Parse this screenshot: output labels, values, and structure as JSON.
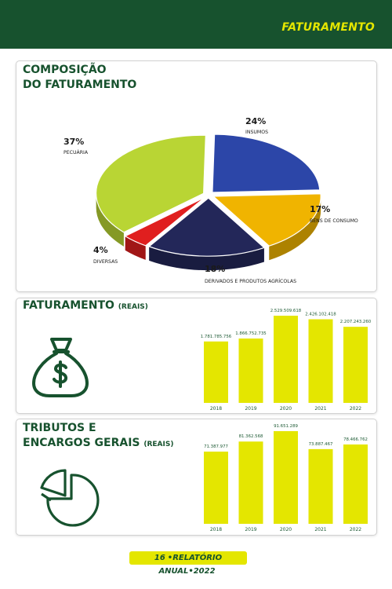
{
  "header": {
    "section_title": "FATURAMENTO"
  },
  "colors": {
    "brand_green": "#17522e",
    "accent_yellow": "#e4e600",
    "pie": [
      "#2c46a8",
      "#f0b400",
      "#232759",
      "#e01f1f",
      "#b9d534"
    ]
  },
  "pie_card": {
    "title_line1": "COMPOSIÇÃO",
    "title_line2": "DO FATURAMENTO"
  },
  "revenue_card": {
    "title": "FATURAMENTO",
    "unit": "(REAIS)",
    "icon": "money-bag-icon"
  },
  "tax_card": {
    "title_line1": "TRIBUTOS E",
    "title_line2": "ENCARGOS GERAIS",
    "unit": "(REAIS)",
    "icon": "pie-chart-icon"
  },
  "chart_data": [
    {
      "type": "pie",
      "title": "COMPOSIÇÃO DO FATURAMENTO",
      "slices": [
        {
          "label": "INSUMOS",
          "value": 24,
          "display": "24%"
        },
        {
          "label": "BENS DE CONSUMO",
          "value": 17,
          "display": "17%"
        },
        {
          "label": "DERIVADOS E PRODUTOS AGRÍCOLAS",
          "value": 18,
          "display": "18%"
        },
        {
          "label": "DIVERSAS",
          "value": 4,
          "display": "4%"
        },
        {
          "label": "PECUÁRIA",
          "value": 37,
          "display": "37%"
        }
      ]
    },
    {
      "type": "bar",
      "title": "FATURAMENTO (REAIS)",
      "categories": [
        "2018",
        "2019",
        "2020",
        "2021",
        "2022"
      ],
      "values": [
        1781785756,
        1866752735,
        2529509618,
        2426102418,
        2207243260
      ],
      "labels": [
        "1.781.785.756",
        "1.866.752.735",
        "2.529.509.618",
        "2.426.102.418",
        "2.207.243.260"
      ],
      "grid": false
    },
    {
      "type": "bar",
      "title": "TRIBUTOS E ENCARGOS GERAIS (REAIS)",
      "categories": [
        "2018",
        "2019",
        "2020",
        "2021",
        "2022"
      ],
      "values": [
        71387977,
        81362568,
        91651289,
        73887467,
        78466762
      ],
      "labels": [
        "71.387.977",
        "81.362.568",
        "91.651.289",
        "73.887.467",
        "78.466.762"
      ],
      "grid": false
    }
  ],
  "footer": {
    "page_number": "16",
    "label": "•RELATÓRIO ANUAL•2022"
  }
}
